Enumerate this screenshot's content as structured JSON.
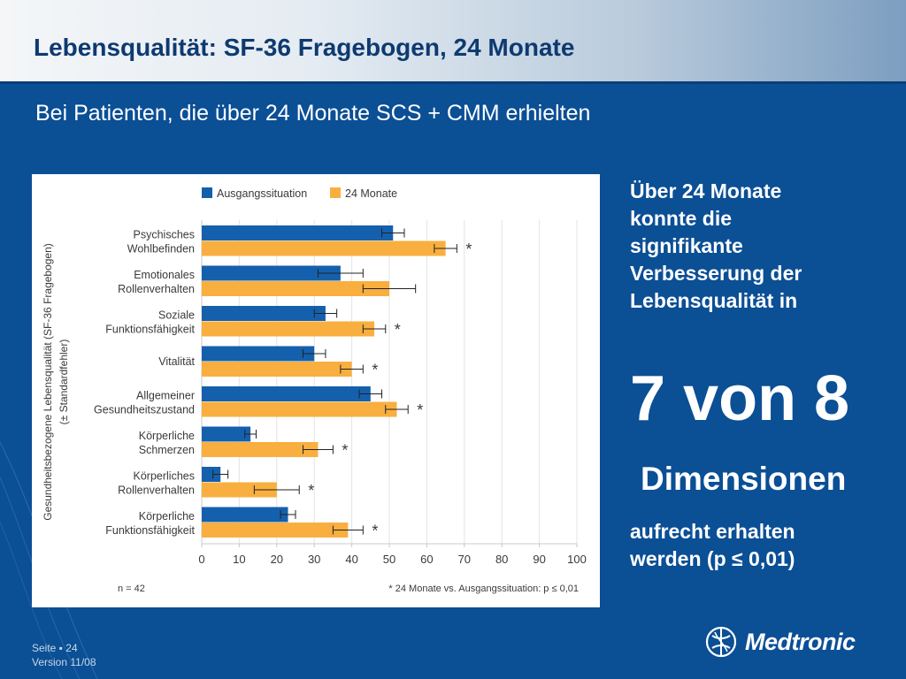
{
  "slide": {
    "title": "Lebensqualität: SF-36 Fragebogen, 24 Monate",
    "subtitle": "Bei Patienten, die über 24 Monate SCS + CMM erhielten"
  },
  "side": {
    "text_lines": [
      "Über 24 Monate",
      "konnte die",
      "signifikante",
      "Verbesserung der",
      "Lebensqualität in"
    ],
    "big_number": "7 von 8",
    "dimension_word": "Dimensionen",
    "tail_lines": [
      "aufrecht erhalten",
      "werden (p ≤ 0,01)"
    ]
  },
  "footer": {
    "page": "Seite ▪ 24",
    "version": "Version 11/08"
  },
  "logo": {
    "name": "Medtronic",
    "icon": "medtronic-logo-icon"
  },
  "colors": {
    "background": "#0b4f95",
    "baseline": "#1560ad",
    "month24": "#f8af3f",
    "title": "#0d3a70"
  },
  "chart_data": {
    "type": "bar",
    "orientation": "horizontal",
    "ylabel": "Gesundheitsbezogene Lebensqualität (SF-36 Fragebogen)",
    "ylabel2": "(± Standardfehler)",
    "categories": [
      [
        "Psychisches",
        "Wohlbefinden"
      ],
      [
        "Emotionales",
        "Rollenverhalten"
      ],
      [
        "Soziale",
        "Funktionsfähigkeit"
      ],
      [
        "Vitalität"
      ],
      [
        "Allgemeiner",
        "Gesundheitszustand"
      ],
      [
        "Körperliche",
        "Schmerzen"
      ],
      [
        "Körperliches",
        "Rollenverhalten"
      ],
      [
        "Körperliche",
        "Funktionsfähigkeit"
      ]
    ],
    "series": [
      {
        "name": "Ausgangssituation",
        "values": [
          51,
          37,
          33,
          30,
          45,
          13,
          5,
          23
        ],
        "errors": [
          3,
          6,
          3,
          3,
          3,
          1.5,
          2,
          2
        ]
      },
      {
        "name": "24 Monate",
        "values": [
          65,
          50,
          46,
          40,
          52,
          31,
          20,
          39
        ],
        "errors": [
          3,
          7,
          3,
          3,
          3,
          4,
          6,
          4
        ]
      }
    ],
    "significant": [
      true,
      false,
      true,
      true,
      true,
      true,
      true,
      true
    ],
    "significance_mark": "*",
    "xticks": [
      0,
      10,
      20,
      30,
      40,
      50,
      60,
      70,
      80,
      90,
      100
    ],
    "xlim": [
      0,
      100
    ],
    "n_label": "n = 42",
    "footnote": "* 24 Monate vs. Ausgangssituation: p ≤ 0,01",
    "legend_position": "top",
    "grid": true
  }
}
